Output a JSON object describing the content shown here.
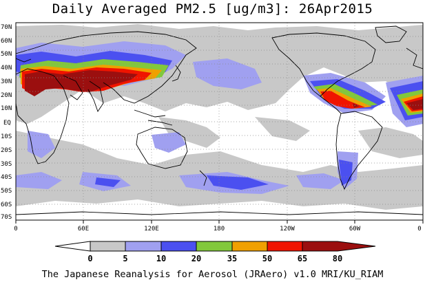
{
  "title": "Daily Averaged PM2.5 [ug/m3]: 26Apr2015",
  "lat_labels": [
    "70N",
    "60N",
    "50N",
    "40N",
    "30N",
    "20N",
    "10N",
    "EQ",
    "10S",
    "20S",
    "30S",
    "40S",
    "50S",
    "60S",
    "70S"
  ],
  "lon_labels": [
    "0",
    "60E",
    "120E",
    "180",
    "120W",
    "60W",
    "0"
  ],
  "colorbar": {
    "ticks": [
      "0",
      "5",
      "10",
      "20",
      "35",
      "50",
      "65",
      "80"
    ],
    "colors": [
      "#ffffff",
      "#c8c8c8",
      "#a0a0f0",
      "#4b50f0",
      "#82c83c",
      "#f0a000",
      "#f01400",
      "#9b0f0f"
    ]
  },
  "footer": "The Japanese Reanalysis for Aerosol (JRAero) v1.0 MRI/KU_RIAM"
}
